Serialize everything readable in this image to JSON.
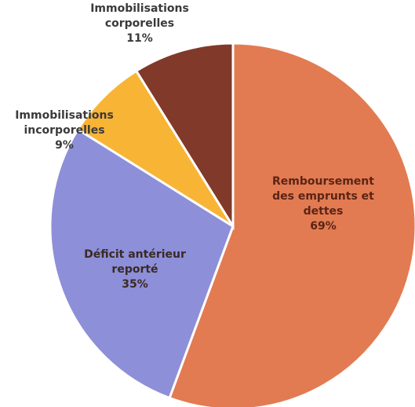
{
  "chart_data": {
    "type": "pie",
    "categories": [
      "Remboursement\ndes emprunts et\ndettes",
      "Déficit antérieur\nreporté",
      "Immobilisations\nincorporelles",
      "Immobilisations\ncorporelles"
    ],
    "values": [
      69,
      35,
      9,
      11
    ],
    "value_labels": [
      "69%",
      "35%",
      "9%",
      "11%"
    ],
    "colors": [
      "#e27b52",
      "#8d8fd9",
      "#f8b435",
      "#81392a"
    ]
  }
}
